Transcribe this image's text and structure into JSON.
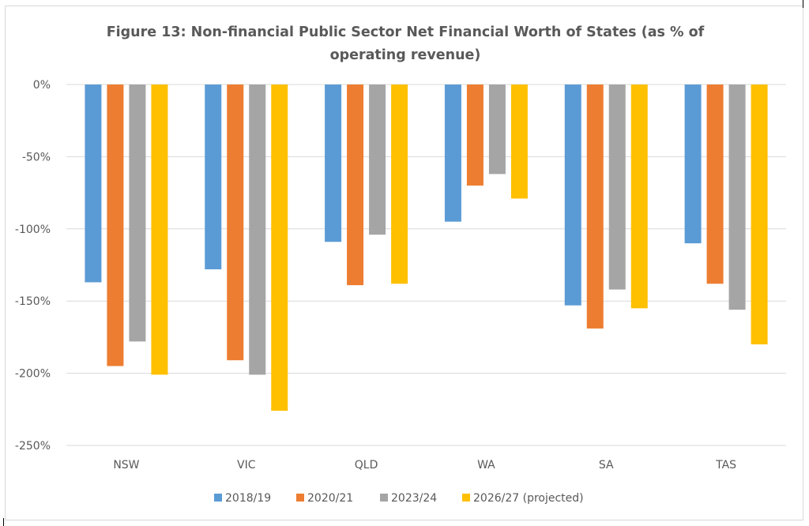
{
  "chart_data": {
    "type": "bar",
    "title": "Figure 13: Non-financial Public Sector Net Financial Worth of States (as % of operating revenue)",
    "title_lines": [
      "Figure 13: Non-financial Public Sector Net Financial Worth of States (as % of",
      "operating revenue)"
    ],
    "xlabel": "",
    "ylabel": "",
    "categories": [
      "NSW",
      "VIC",
      "QLD",
      "WA",
      "SA",
      "TAS"
    ],
    "ylim": [
      -250,
      0
    ],
    "yticks": [
      0,
      -50,
      -100,
      -150,
      -200,
      -250
    ],
    "ytick_labels": [
      "0%",
      "-50%",
      "-100%",
      "-150%",
      "-200%",
      "-250%"
    ],
    "grid": true,
    "legend_position": "bottom",
    "series": [
      {
        "name": "2018/19",
        "color": "#5b9bd5",
        "values": [
          -137,
          -128,
          -109,
          -95,
          -153,
          -110
        ]
      },
      {
        "name": "2020/21",
        "color": "#ed7d31",
        "values": [
          -195,
          -191,
          -139,
          -70,
          -169,
          -138
        ]
      },
      {
        "name": "2023/24",
        "color": "#a5a5a5",
        "values": [
          -178,
          -201,
          -104,
          -62,
          -142,
          -156
        ]
      },
      {
        "name": "2026/27 (projected)",
        "color": "#ffc000",
        "values": [
          -201,
          -226,
          -138,
          -79,
          -155,
          -180
        ]
      }
    ]
  }
}
